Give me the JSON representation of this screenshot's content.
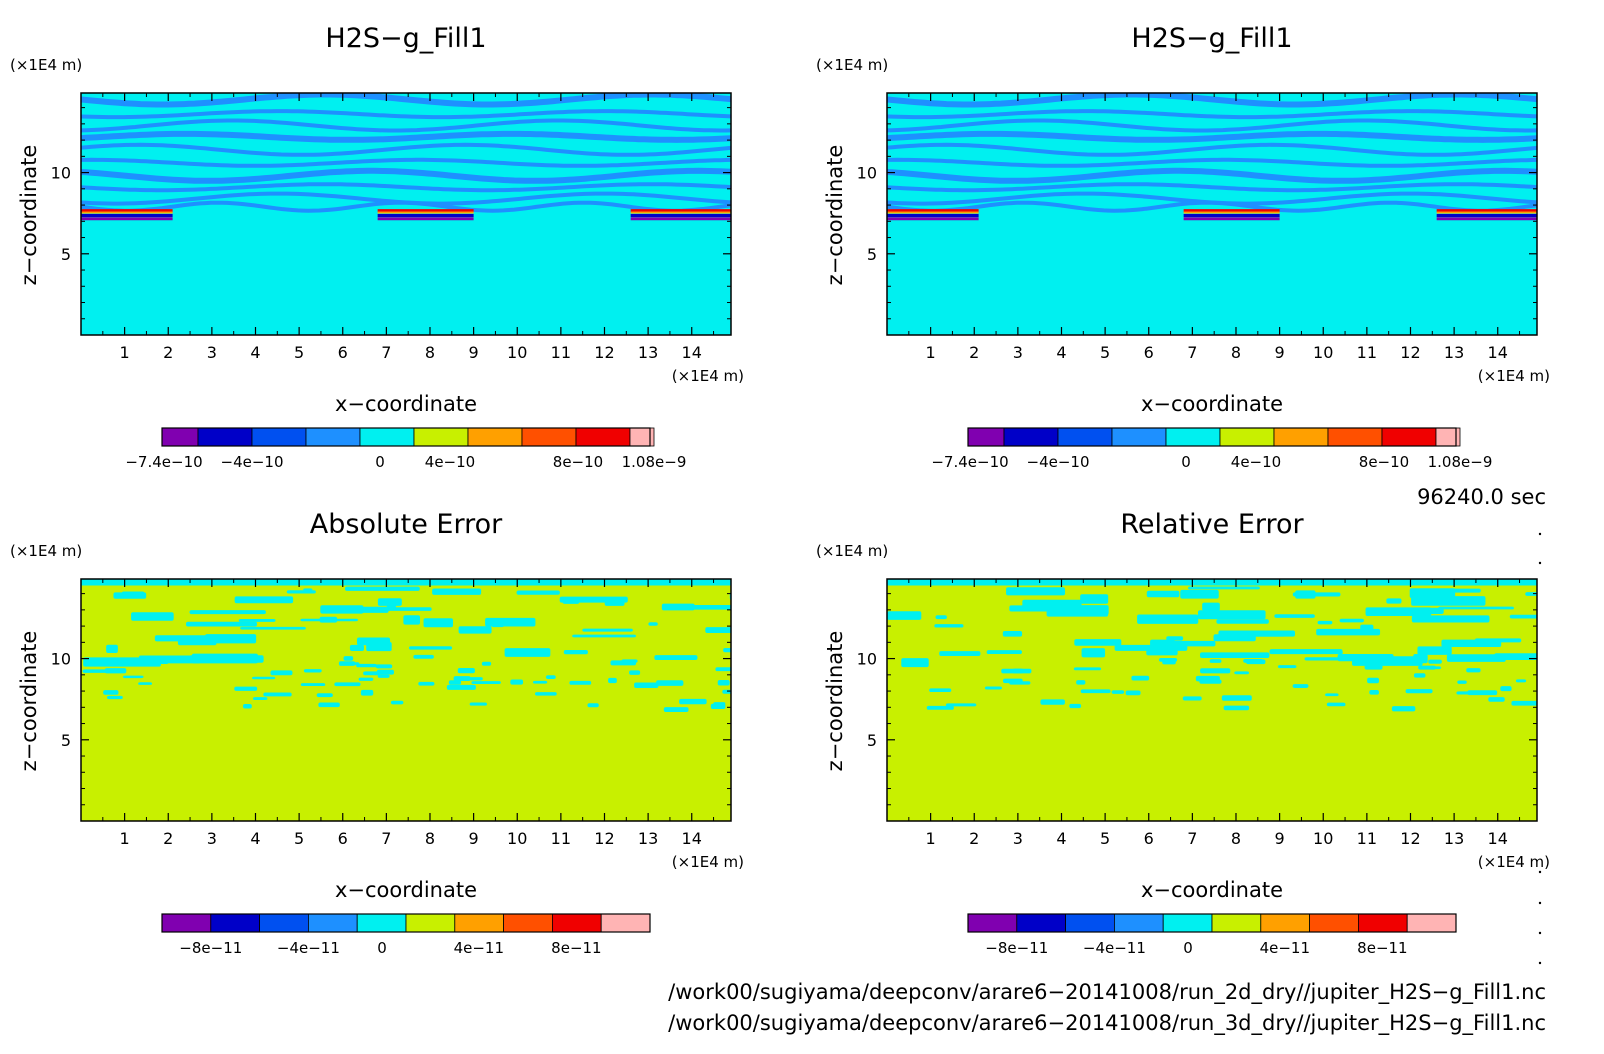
{
  "panels": [
    {
      "title": "H2S−g_Fill1",
      "xlabel": "x−coordinate",
      "ylabel": "z−coordinate",
      "x_unit": "(×1E4 m)",
      "y_unit": "(×1E4 m)",
      "colorbar": {
        "colors": [
          "#8000b0",
          "#0000c8",
          "#0050f0",
          "#1e90ff",
          "#00f0f0",
          "#c8f000",
          "#ffa000",
          "#ff5000",
          "#f00000",
          "#ffb4b4"
        ],
        "tick_labels": [
          "−7.4e−10",
          "−4e−10",
          "0",
          "4e−10",
          "8e−10",
          "1.08e−9"
        ]
      }
    },
    {
      "title": "H2S−g_Fill1",
      "xlabel": "x−coordinate",
      "ylabel": "z−coordinate",
      "x_unit": "(×1E4 m)",
      "y_unit": "(×1E4 m)",
      "colorbar": {
        "colors": [
          "#8000b0",
          "#0000c8",
          "#0050f0",
          "#1e90ff",
          "#00f0f0",
          "#c8f000",
          "#ffa000",
          "#ff5000",
          "#f00000",
          "#ffb4b4"
        ],
        "tick_labels": [
          "−7.4e−10",
          "−4e−10",
          "0",
          "4e−10",
          "8e−10",
          "1.08e−9"
        ]
      }
    },
    {
      "title": "Absolute Error",
      "xlabel": "x−coordinate",
      "ylabel": "z−coordinate",
      "x_unit": "(×1E4 m)",
      "y_unit": "(×1E4 m)",
      "colorbar": {
        "colors": [
          "#8000b0",
          "#0000c8",
          "#0050f0",
          "#1e90ff",
          "#00f0f0",
          "#c8f000",
          "#ffa000",
          "#ff5000",
          "#f00000",
          "#ffb4b4"
        ],
        "tick_labels": [
          "−8e−11",
          "−4e−11",
          "0",
          "4e−11",
          "8e−11"
        ]
      }
    },
    {
      "title": "Relative Error",
      "xlabel": "x−coordinate",
      "ylabel": "z−coordinate",
      "x_unit": "(×1E4 m)",
      "y_unit": "(×1E4 m)",
      "colorbar": {
        "colors": [
          "#8000b0",
          "#0000c8",
          "#0050f0",
          "#1e90ff",
          "#00f0f0",
          "#c8f000",
          "#ffa000",
          "#ff5000",
          "#f00000",
          "#ffb4b4"
        ],
        "tick_labels": [
          "−8e−11",
          "−4e−11",
          "0",
          "4e−11",
          "8e−11"
        ]
      }
    }
  ],
  "time_label": "96240.0 sec",
  "file_paths": [
    "/work00/sugiyama/deepconv/arare6−20141008/run_2d_dry//jupiter_H2S−g_Fill1.nc",
    "/work00/sugiyama/deepconv/arare6−20141008/run_3d_dry//jupiter_H2S−g_Fill1.nc"
  ],
  "chart_data": [
    {
      "type": "heatmap",
      "title": "H2S−g_Fill1",
      "xlabel": "x−coordinate",
      "ylabel": "z−coordinate",
      "x_ticks": [
        1,
        2,
        3,
        4,
        5,
        6,
        7,
        8,
        9,
        10,
        11,
        12,
        13,
        14
      ],
      "y_ticks": [
        5,
        10
      ],
      "xlim": [
        0,
        14.9
      ],
      "ylim": [
        0,
        14.9
      ],
      "colorbar_levels": [
        "−7.4e−10",
        "−4e−10",
        "0",
        "4e−10",
        "8e−10",
        "1.08e−9"
      ],
      "background_value": "0 (cyan)",
      "features": [
        {
          "kind": "banded_layers",
          "z_range": [
            8,
            14.9
          ],
          "value": "around −4e−10 to 0"
        },
        {
          "kind": "strong_gradient_layer",
          "z": 7.5,
          "value": "−7.4e−10 to 1.08e−9"
        }
      ]
    },
    {
      "type": "heatmap",
      "title": "H2S−g_Fill1",
      "xlabel": "x−coordinate",
      "ylabel": "z−coordinate",
      "x_ticks": [
        1,
        2,
        3,
        4,
        5,
        6,
        7,
        8,
        9,
        10,
        11,
        12,
        13,
        14
      ],
      "y_ticks": [
        5,
        10
      ],
      "xlim": [
        0,
        14.9
      ],
      "ylim": [
        0,
        14.9
      ],
      "colorbar_levels": [
        "−7.4e−10",
        "−4e−10",
        "0",
        "4e−10",
        "8e−10",
        "1.08e−9"
      ],
      "background_value": "0 (cyan)",
      "features": [
        {
          "kind": "banded_layers",
          "z_range": [
            8,
            14.9
          ],
          "value": "around −4e−10 to 0"
        },
        {
          "kind": "strong_gradient_layer",
          "z": 7.5,
          "value": "−7.4e−10 to 1.08e−9"
        }
      ]
    },
    {
      "type": "heatmap",
      "title": "Absolute Error",
      "xlabel": "x−coordinate",
      "ylabel": "z−coordinate",
      "x_ticks": [
        1,
        2,
        3,
        4,
        5,
        6,
        7,
        8,
        9,
        10,
        11,
        12,
        13,
        14
      ],
      "y_ticks": [
        5,
        10
      ],
      "xlim": [
        0,
        14.9
      ],
      "ylim": [
        0,
        14.9
      ],
      "colorbar_levels": [
        "−8e−11",
        "−4e−11",
        "0",
        "4e−11",
        "8e−11"
      ],
      "background_value": "0 to 4e−11 (yellow-green)",
      "features": [
        {
          "kind": "scattered_patches",
          "z_range": [
            7,
            14.9
          ],
          "value": "−4e−11 to 0 (cyan)"
        }
      ]
    },
    {
      "type": "heatmap",
      "title": "Relative Error",
      "xlabel": "x−coordinate",
      "ylabel": "z−coordinate",
      "x_ticks": [
        1,
        2,
        3,
        4,
        5,
        6,
        7,
        8,
        9,
        10,
        11,
        12,
        13,
        14
      ],
      "y_ticks": [
        5,
        10
      ],
      "xlim": [
        0,
        14.9
      ],
      "ylim": [
        0,
        14.9
      ],
      "colorbar_levels": [
        "−8e−11",
        "−4e−11",
        "0",
        "4e−11",
        "8e−11"
      ],
      "background_value": "0 to 4e−11 (yellow-green)",
      "features": [
        {
          "kind": "scattered_patches",
          "z_range": [
            6.5,
            14.9
          ],
          "value": "−4e−11 to 0 (cyan)"
        }
      ]
    }
  ]
}
